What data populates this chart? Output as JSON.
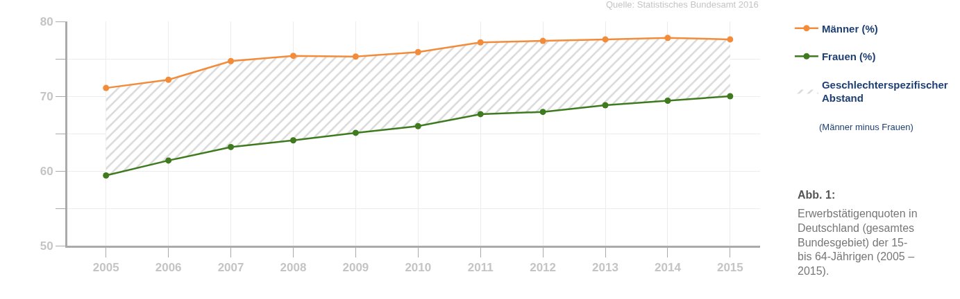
{
  "chart_data": {
    "type": "line",
    "categories": [
      "2005",
      "2006",
      "2007",
      "2008",
      "2009",
      "2010",
      "2011",
      "2012",
      "2013",
      "2014",
      "2015"
    ],
    "series": [
      {
        "name": "Männer (%)",
        "color": "#f28c3a",
        "values": [
          71.1,
          72.2,
          74.7,
          75.4,
          75.3,
          75.9,
          77.2,
          77.4,
          77.6,
          77.8,
          77.6
        ],
        "lower": [
          59.4,
          61.4,
          63.2,
          64.1,
          65.1,
          66.0,
          67.6,
          67.9,
          68.8,
          69.4,
          70.0
        ],
        "upper": [
          71.1,
          72.2,
          74.7,
          75.4,
          75.3,
          75.9,
          77.2,
          77.4,
          77.6,
          77.8,
          77.6
        ]
      },
      {
        "name": "Frauen (%)",
        "color": "#3f7a1f",
        "values": [
          59.4,
          61.4,
          63.2,
          64.1,
          65.1,
          66.0,
          67.6,
          67.9,
          68.8,
          69.4,
          70.0
        ]
      }
    ],
    "ylim": [
      50,
      80
    ],
    "yticks": [
      50,
      {
        "value": 55,
        "label": null
      },
      60,
      {
        "value": 65,
        "label": null
      },
      70,
      {
        "value": 75,
        "label": null
      },
      80
    ],
    "grid": true,
    "legend": "right",
    "marker": "circle",
    "line_style": "solid",
    "annotations": [
      "Quelle: Statistisches Bundesamt 2016",
      "Geschlechterspezifischer Abstand",
      "(Männer minus Frauen)",
      "Abb. 1:",
      "Erwerbstätigenquoten in Deutschland (gesamtes Bundesgebiet) der 15- bis 64-Jährigen (2005 – 2015)."
    ]
  }
}
